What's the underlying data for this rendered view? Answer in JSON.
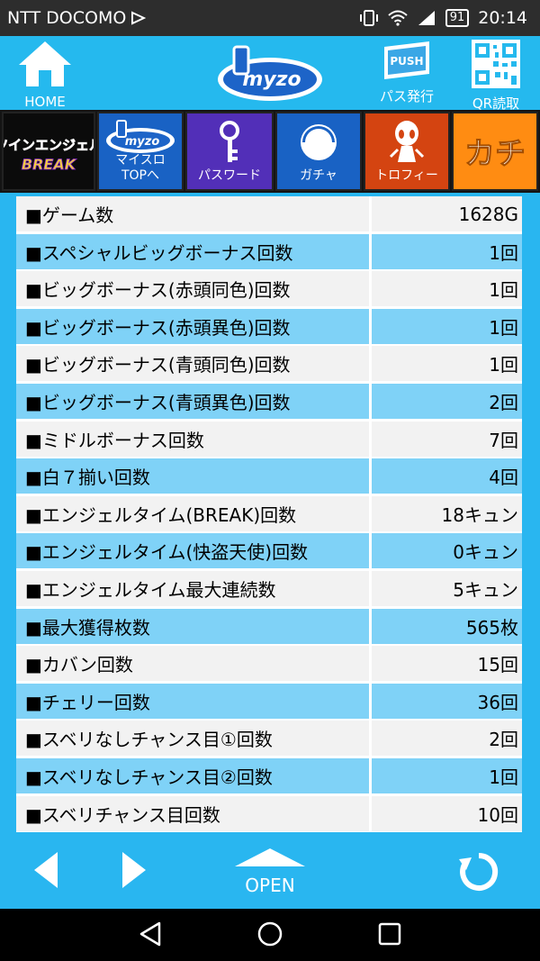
{
  "status": {
    "carrier": "NTT DOCOMO",
    "battery": "91",
    "time": "20:14"
  },
  "header": {
    "home_label": "HOME",
    "logo_text": "myzo",
    "push_text": "PUSH",
    "pass_label": "パス発行",
    "qr_label": "QR読取"
  },
  "menu": {
    "game_logo_text": "ツインエンジェル BREAK",
    "myslo_logo": "myzo",
    "myslo_label": "マイスロ\nTOPへ",
    "password_label": "パスワード",
    "gacha_label": "ガチャ",
    "trophy_label": "トロフィー",
    "kachi_label": "カチ"
  },
  "rows": [
    {
      "label": "■ゲーム数",
      "value": "1628G"
    },
    {
      "label": "■スペシャルビッグボーナス回数",
      "value": "1回"
    },
    {
      "label": "■ビッグボーナス(赤頭同色)回数",
      "value": "1回"
    },
    {
      "label": "■ビッグボーナス(赤頭異色)回数",
      "value": "1回"
    },
    {
      "label": "■ビッグボーナス(青頭同色)回数",
      "value": "1回"
    },
    {
      "label": "■ビッグボーナス(青頭異色)回数",
      "value": "2回"
    },
    {
      "label": "■ミドルボーナス回数",
      "value": "7回"
    },
    {
      "label": "■白７揃い回数",
      "value": "4回"
    },
    {
      "label": "■エンジェルタイム(BREAK)回数",
      "value": "18キュン"
    },
    {
      "label": "■エンジェルタイム(快盗天使)回数",
      "value": "0キュン"
    },
    {
      "label": "■エンジェルタイム最大連続数",
      "value": "5キュン"
    },
    {
      "label": "■最大獲得枚数",
      "value": "565枚"
    },
    {
      "label": "■カバン回数",
      "value": "15回"
    },
    {
      "label": "■チェリー回数",
      "value": "36回"
    },
    {
      "label": "■スベリなしチャンス目①回数",
      "value": "2回"
    },
    {
      "label": "■スベリなしチャンス目②回数",
      "value": "1回"
    },
    {
      "label": "■スベリチャンス目回数",
      "value": "10回"
    }
  ],
  "footer": {
    "open_label": "OPEN"
  }
}
